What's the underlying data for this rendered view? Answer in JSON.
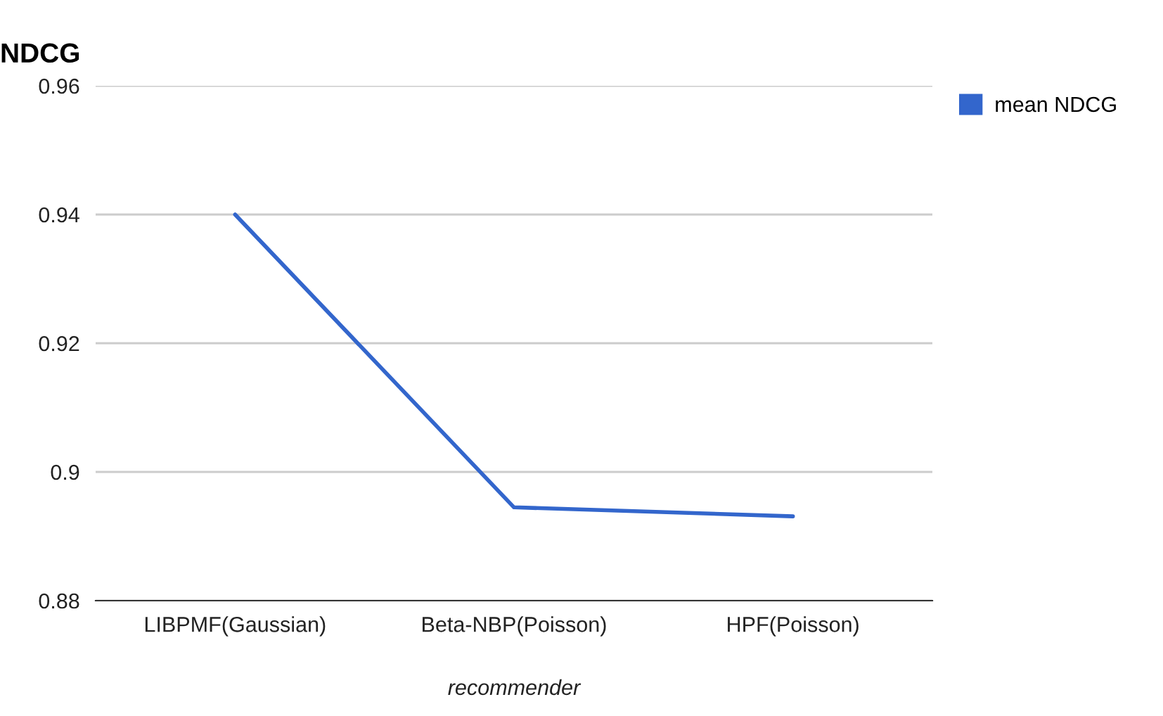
{
  "chart_data": {
    "type": "line",
    "title": "NDCG",
    "xlabel": "recommender",
    "categories": [
      "LIBPMF(Gaussian)",
      "Beta-NBP(Poisson)",
      "HPF(Poisson)"
    ],
    "series": [
      {
        "name": "mean NDCG",
        "color": "#3366cc",
        "values": [
          0.94,
          0.8945,
          0.8931
        ]
      }
    ],
    "ylim": [
      0.88,
      0.96
    ],
    "yticks": [
      {
        "value": 0.88,
        "label": "0.88"
      },
      {
        "value": 0.9,
        "label": "0.9"
      },
      {
        "value": 0.92,
        "label": "0.92"
      },
      {
        "value": 0.94,
        "label": "0.94"
      },
      {
        "value": 0.96,
        "label": "0.96"
      }
    ],
    "grid": "y",
    "legend": "top right",
    "marker": "none",
    "line_style": "solid"
  }
}
